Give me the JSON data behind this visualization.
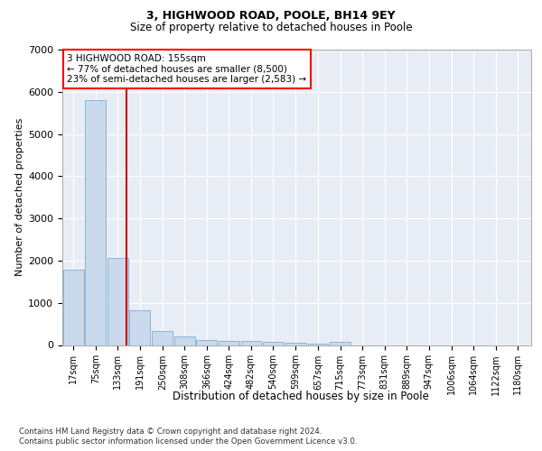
{
  "title1": "3, HIGHWOOD ROAD, POOLE, BH14 9EY",
  "title2": "Size of property relative to detached houses in Poole",
  "xlabel": "Distribution of detached houses by size in Poole",
  "ylabel": "Number of detached properties",
  "footnote1": "Contains HM Land Registry data © Crown copyright and database right 2024.",
  "footnote2": "Contains public sector information licensed under the Open Government Licence v3.0.",
  "annotation_line1": "3 HIGHWOOD ROAD: 155sqm",
  "annotation_line2": "← 77% of detached houses are smaller (8,500)",
  "annotation_line3": "23% of semi-detached houses are larger (2,583) →",
  "bar_color": "#cad9ec",
  "bar_edge_color": "#7bafd4",
  "red_line_color": "#cc0000",
  "red_line_x": 155,
  "categories": [
    17,
    75,
    133,
    191,
    250,
    308,
    366,
    424,
    482,
    540,
    599,
    657,
    715,
    773,
    831,
    889,
    947,
    1006,
    1064,
    1122,
    1180
  ],
  "values": [
    1780,
    5800,
    2060,
    820,
    340,
    195,
    120,
    100,
    90,
    85,
    50,
    30,
    80,
    0,
    0,
    0,
    0,
    0,
    0,
    0,
    0
  ],
  "ylim": [
    0,
    7000
  ],
  "yticks": [
    0,
    1000,
    2000,
    3000,
    4000,
    5000,
    6000,
    7000
  ],
  "plot_bg_color": "#e8edf5",
  "grid_color": "#ffffff",
  "figsize": [
    6.0,
    5.0
  ],
  "dpi": 100
}
